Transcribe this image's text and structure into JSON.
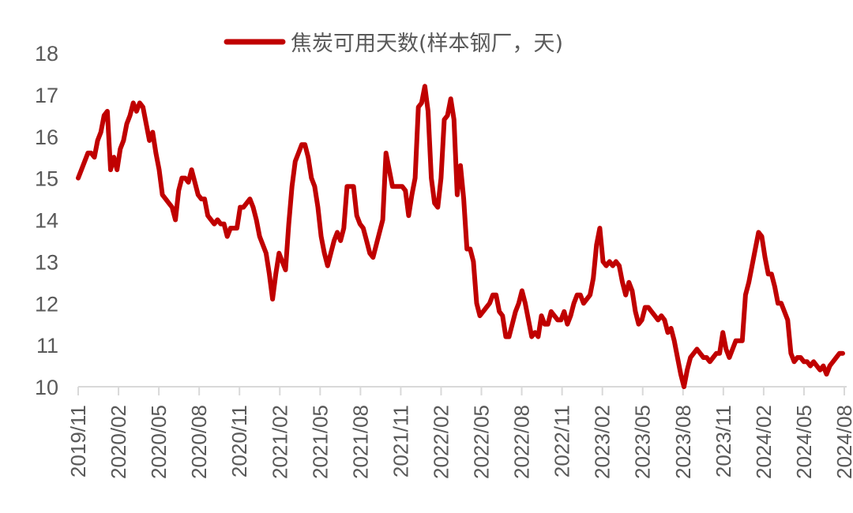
{
  "chart_data": {
    "type": "line",
    "title": "",
    "xlabel": "",
    "ylabel": "",
    "ylim": [
      10,
      18
    ],
    "yticks": [
      10,
      11,
      12,
      13,
      14,
      15,
      16,
      17,
      18
    ],
    "grid": false,
    "legend_position": "top",
    "x_tick_labels": [
      "2019/11",
      "2020/02",
      "2020/05",
      "2020/08",
      "2020/11",
      "2021/02",
      "2021/05",
      "2021/08",
      "2021/11",
      "2022/02",
      "2022/05",
      "2022/08",
      "2022/11",
      "2023/02",
      "2023/05",
      "2023/08",
      "2023/11",
      "2024/02",
      "2024/05",
      "2024/08"
    ],
    "series": [
      {
        "name": "焦炭可用天数(样本钢厂，天)",
        "color": "#C00000",
        "frequency": "approx. weekly",
        "points": [
          [
            "2019/11",
            15.0
          ],
          [
            "2019/11",
            15.2
          ],
          [
            "2019/12",
            15.4
          ],
          [
            "2019/12",
            15.6
          ],
          [
            "2019/12",
            15.6
          ],
          [
            "2019/12",
            15.5
          ],
          [
            "2019/12",
            15.9
          ],
          [
            "2020/01",
            16.1
          ],
          [
            "2020/01",
            16.5
          ],
          [
            "2020/01",
            16.6
          ],
          [
            "2020/01",
            15.2
          ],
          [
            "2020/02",
            15.5
          ],
          [
            "2020/02",
            15.2
          ],
          [
            "2020/02",
            15.7
          ],
          [
            "2020/02",
            15.9
          ],
          [
            "2020/03",
            16.3
          ],
          [
            "2020/03",
            16.5
          ],
          [
            "2020/03",
            16.8
          ],
          [
            "2020/03",
            16.6
          ],
          [
            "2020/04",
            16.8
          ],
          [
            "2020/04",
            16.7
          ],
          [
            "2020/04",
            16.3
          ],
          [
            "2020/04",
            15.9
          ],
          [
            "2020/04",
            16.1
          ],
          [
            "2020/05",
            15.6
          ],
          [
            "2020/05",
            15.2
          ],
          [
            "2020/05",
            14.6
          ],
          [
            "2020/05",
            14.5
          ],
          [
            "2020/06",
            14.4
          ],
          [
            "2020/06",
            14.3
          ],
          [
            "2020/06",
            14.0
          ],
          [
            "2020/06",
            14.7
          ],
          [
            "2020/07",
            15.0
          ],
          [
            "2020/07",
            15.0
          ],
          [
            "2020/07",
            14.9
          ],
          [
            "2020/07",
            15.2
          ],
          [
            "2020/08",
            14.9
          ],
          [
            "2020/08",
            14.6
          ],
          [
            "2020/08",
            14.5
          ],
          [
            "2020/08",
            14.5
          ],
          [
            "2020/09",
            14.1
          ],
          [
            "2020/09",
            14.0
          ],
          [
            "2020/09",
            13.9
          ],
          [
            "2020/09",
            14.0
          ],
          [
            "2020/10",
            13.9
          ],
          [
            "2020/10",
            13.9
          ],
          [
            "2020/10",
            13.6
          ],
          [
            "2020/10",
            13.8
          ],
          [
            "2020/11",
            13.8
          ],
          [
            "2020/11",
            13.8
          ],
          [
            "2020/11",
            14.3
          ],
          [
            "2020/11",
            14.3
          ],
          [
            "2020/12",
            14.4
          ],
          [
            "2020/12",
            14.5
          ],
          [
            "2020/12",
            14.3
          ],
          [
            "2020/12",
            14.0
          ],
          [
            "2021/01",
            13.6
          ],
          [
            "2021/01",
            13.4
          ],
          [
            "2021/01",
            13.2
          ],
          [
            "2021/01",
            12.7
          ],
          [
            "2021/01",
            12.1
          ],
          [
            "2021/02",
            12.7
          ],
          [
            "2021/02",
            13.2
          ],
          [
            "2021/02",
            13.0
          ],
          [
            "2021/02",
            12.8
          ],
          [
            "2021/03",
            13.9
          ],
          [
            "2021/03",
            14.8
          ],
          [
            "2021/03",
            15.4
          ],
          [
            "2021/03",
            15.6
          ],
          [
            "2021/04",
            15.8
          ],
          [
            "2021/04",
            15.8
          ],
          [
            "2021/04",
            15.5
          ],
          [
            "2021/04",
            15.0
          ],
          [
            "2021/05",
            14.8
          ],
          [
            "2021/05",
            14.3
          ],
          [
            "2021/05",
            13.6
          ],
          [
            "2021/05",
            13.2
          ],
          [
            "2021/06",
            12.9
          ],
          [
            "2021/06",
            13.2
          ],
          [
            "2021/06",
            13.5
          ],
          [
            "2021/06",
            13.7
          ],
          [
            "2021/07",
            13.5
          ],
          [
            "2021/07",
            13.8
          ],
          [
            "2021/07",
            14.8
          ],
          [
            "2021/07",
            14.8
          ],
          [
            "2021/08",
            14.8
          ],
          [
            "2021/08",
            14.1
          ],
          [
            "2021/08",
            13.9
          ],
          [
            "2021/08",
            13.8
          ],
          [
            "2021/09",
            13.5
          ],
          [
            "2021/09",
            13.2
          ],
          [
            "2021/09",
            13.1
          ],
          [
            "2021/09",
            13.4
          ],
          [
            "2021/10",
            13.7
          ],
          [
            "2021/10",
            14.0
          ],
          [
            "2021/10",
            15.6
          ],
          [
            "2021/10",
            15.2
          ],
          [
            "2021/10",
            14.8
          ],
          [
            "2021/11",
            14.8
          ],
          [
            "2021/11",
            14.8
          ],
          [
            "2021/11",
            14.8
          ],
          [
            "2021/11",
            14.7
          ],
          [
            "2021/12",
            14.1
          ],
          [
            "2021/12",
            14.6
          ],
          [
            "2021/12",
            15.0
          ],
          [
            "2021/12",
            16.7
          ],
          [
            "2022/01",
            16.8
          ],
          [
            "2022/01",
            17.2
          ],
          [
            "2022/01",
            16.6
          ],
          [
            "2022/01",
            15.0
          ],
          [
            "2022/01",
            14.4
          ],
          [
            "2022/02",
            14.3
          ],
          [
            "2022/02",
            15.0
          ],
          [
            "2022/02",
            16.4
          ],
          [
            "2022/02",
            16.5
          ],
          [
            "2022/03",
            16.9
          ],
          [
            "2022/03",
            16.4
          ],
          [
            "2022/03",
            14.6
          ],
          [
            "2022/03",
            15.3
          ],
          [
            "2022/04",
            14.5
          ],
          [
            "2022/04",
            13.3
          ],
          [
            "2022/04",
            13.3
          ],
          [
            "2022/04",
            13.0
          ],
          [
            "2022/05",
            12.0
          ],
          [
            "2022/05",
            11.7
          ],
          [
            "2022/05",
            11.8
          ],
          [
            "2022/05",
            11.9
          ],
          [
            "2022/06",
            12.0
          ],
          [
            "2022/06",
            12.2
          ],
          [
            "2022/06",
            12.2
          ],
          [
            "2022/06",
            11.8
          ],
          [
            "2022/07",
            11.7
          ],
          [
            "2022/07",
            11.2
          ],
          [
            "2022/07",
            11.2
          ],
          [
            "2022/07",
            11.5
          ],
          [
            "2022/08",
            11.8
          ],
          [
            "2022/08",
            12.0
          ],
          [
            "2022/08",
            12.3
          ],
          [
            "2022/08",
            12.0
          ],
          [
            "2022/09",
            11.6
          ],
          [
            "2022/09",
            11.2
          ],
          [
            "2022/09",
            11.3
          ],
          [
            "2022/09",
            11.2
          ],
          [
            "2022/10",
            11.7
          ],
          [
            "2022/10",
            11.5
          ],
          [
            "2022/10",
            11.5
          ],
          [
            "2022/10",
            11.8
          ],
          [
            "2022/10",
            11.7
          ],
          [
            "2022/11",
            11.6
          ],
          [
            "2022/11",
            11.6
          ],
          [
            "2022/11",
            11.8
          ],
          [
            "2022/11",
            11.5
          ],
          [
            "2022/12",
            11.7
          ],
          [
            "2022/12",
            12.0
          ],
          [
            "2022/12",
            12.2
          ],
          [
            "2022/12",
            12.2
          ],
          [
            "2023/01",
            12.0
          ],
          [
            "2023/01",
            12.1
          ],
          [
            "2023/01",
            12.2
          ],
          [
            "2023/01",
            12.6
          ],
          [
            "2023/01",
            13.4
          ],
          [
            "2023/02",
            13.8
          ],
          [
            "2023/02",
            13.0
          ],
          [
            "2023/02",
            12.9
          ],
          [
            "2023/02",
            13.0
          ],
          [
            "2023/03",
            12.9
          ],
          [
            "2023/03",
            13.0
          ],
          [
            "2023/03",
            12.9
          ],
          [
            "2023/03",
            12.5
          ],
          [
            "2023/04",
            12.2
          ],
          [
            "2023/04",
            12.5
          ],
          [
            "2023/04",
            12.3
          ],
          [
            "2023/04",
            11.8
          ],
          [
            "2023/05",
            11.5
          ],
          [
            "2023/05",
            11.6
          ],
          [
            "2023/05",
            11.9
          ],
          [
            "2023/05",
            11.9
          ],
          [
            "2023/06",
            11.8
          ],
          [
            "2023/06",
            11.7
          ],
          [
            "2023/06",
            11.6
          ],
          [
            "2023/06",
            11.7
          ],
          [
            "2023/07",
            11.6
          ],
          [
            "2023/07",
            11.3
          ],
          [
            "2023/07",
            11.4
          ],
          [
            "2023/07",
            11.1
          ],
          [
            "2023/08",
            10.7
          ],
          [
            "2023/08",
            10.3
          ],
          [
            "2023/08",
            10.0
          ],
          [
            "2023/08",
            10.4
          ],
          [
            "2023/09",
            10.7
          ],
          [
            "2023/09",
            10.8
          ],
          [
            "2023/09",
            10.9
          ],
          [
            "2023/09",
            10.8
          ],
          [
            "2023/10",
            10.7
          ],
          [
            "2023/10",
            10.7
          ],
          [
            "2023/10",
            10.6
          ],
          [
            "2023/10",
            10.7
          ],
          [
            "2023/11",
            10.8
          ],
          [
            "2023/11",
            10.8
          ],
          [
            "2023/11",
            11.3
          ],
          [
            "2023/11",
            10.9
          ],
          [
            "2023/12",
            10.7
          ],
          [
            "2023/12",
            10.9
          ],
          [
            "2023/12",
            11.1
          ],
          [
            "2023/12",
            11.1
          ],
          [
            "2024/01",
            11.1
          ],
          [
            "2024/01",
            12.2
          ],
          [
            "2024/01",
            12.5
          ],
          [
            "2024/01",
            12.9
          ],
          [
            "2024/02",
            13.3
          ],
          [
            "2024/02",
            13.7
          ],
          [
            "2024/02",
            13.6
          ],
          [
            "2024/02",
            13.1
          ],
          [
            "2024/03",
            12.7
          ],
          [
            "2024/03",
            12.7
          ],
          [
            "2024/03",
            12.4
          ],
          [
            "2024/03",
            12.0
          ],
          [
            "2024/04",
            12.0
          ],
          [
            "2024/04",
            11.8
          ],
          [
            "2024/04",
            11.6
          ],
          [
            "2024/04",
            10.8
          ],
          [
            "2024/05",
            10.6
          ],
          [
            "2024/05",
            10.7
          ],
          [
            "2024/05",
            10.7
          ],
          [
            "2024/05",
            10.6
          ],
          [
            "2024/06",
            10.6
          ],
          [
            "2024/06",
            10.5
          ],
          [
            "2024/06",
            10.6
          ],
          [
            "2024/06",
            10.5
          ],
          [
            "2024/07",
            10.4
          ],
          [
            "2024/07",
            10.5
          ],
          [
            "2024/07",
            10.3
          ],
          [
            "2024/07",
            10.5
          ],
          [
            "2024/08",
            10.6
          ],
          [
            "2024/08",
            10.7
          ],
          [
            "2024/08",
            10.8
          ],
          [
            "2024/08",
            10.8
          ]
        ]
      }
    ]
  },
  "legend": {
    "label": "焦炭可用天数(样本钢厂，天)",
    "line_color": "#C00000"
  },
  "axes": {
    "tick_color": "#595959",
    "axis_line_color": "#D9D9D9"
  }
}
